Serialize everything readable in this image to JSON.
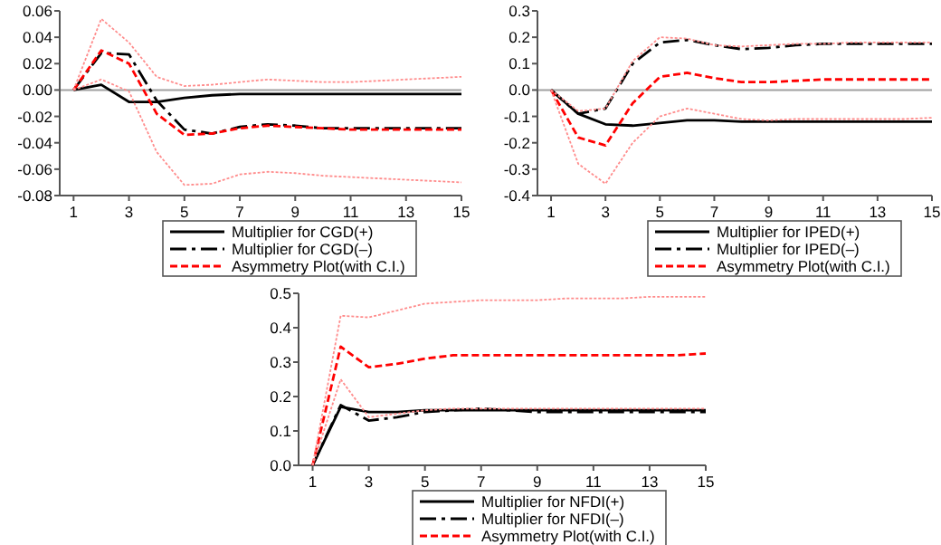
{
  "chart_data": [
    {
      "type": "line",
      "x": [
        1,
        2,
        3,
        4,
        5,
        6,
        7,
        8,
        9,
        10,
        11,
        12,
        13,
        14,
        15
      ],
      "xlim": [
        0.5,
        15
      ],
      "xticks": [
        1,
        3,
        5,
        7,
        9,
        11,
        13,
        15
      ],
      "ylim": [
        -0.08,
        0.06
      ],
      "yticks": [
        {
          "value": 0.06,
          "label": "0.06"
        },
        {
          "value": 0.04,
          "label": "0.04"
        },
        {
          "value": 0.02,
          "label": "0.02"
        },
        {
          "value": 0,
          "label": "0.00"
        },
        {
          "value": -0.02,
          "label": "-0.02"
        },
        {
          "value": -0.04,
          "label": "-0.04"
        },
        {
          "value": -0.06,
          "label": "-0.06"
        },
        {
          "value": -0.08,
          "label": "-0.08"
        }
      ],
      "grid": false,
      "legend": "bottom",
      "ref_lines": [
        {
          "axis": "y",
          "value": 0,
          "color": "#a0a0a0"
        }
      ],
      "series": [
        {
          "name": "Multiplier for CGD(+)",
          "color": "#000000",
          "line_style": "solid",
          "values": [
            0,
            0.004,
            -0.009,
            -0.009,
            -0.006,
            -0.004,
            -0.003,
            -0.003,
            -0.003,
            -0.003,
            -0.003,
            -0.003,
            -0.003,
            -0.003,
            -0.003
          ]
        },
        {
          "name": "Multiplier for CGD(–)",
          "color": "#000000",
          "line_style": "dashed",
          "values": [
            0,
            0.028,
            0.027,
            -0.008,
            -0.03,
            -0.033,
            -0.028,
            -0.026,
            -0.027,
            -0.029,
            -0.029,
            -0.029,
            -0.029,
            -0.029,
            -0.029
          ]
        },
        {
          "name": "Asymmetry Plot(with C.I.)",
          "color": "#ff0000",
          "line_style": "dotted",
          "values": [
            0,
            0.03,
            0.02,
            -0.018,
            -0.034,
            -0.033,
            -0.029,
            -0.027,
            -0.028,
            -0.029,
            -0.03,
            -0.03,
            -0.03,
            -0.03,
            -0.03
          ]
        },
        {
          "color": "#ff8c8c",
          "line_style": "dotted",
          "values": [
            0,
            0.054,
            0.036,
            0.01,
            0.003,
            0.004,
            0.006,
            0.008,
            0.007,
            0.006,
            0.006,
            0.007,
            0.008,
            0.009,
            0.01
          ]
        },
        {
          "color": "#ff8c8c",
          "line_style": "dotted",
          "values": [
            0,
            0.008,
            -0.001,
            -0.047,
            -0.072,
            -0.071,
            -0.064,
            -0.062,
            -0.063,
            -0.065,
            -0.066,
            -0.067,
            -0.068,
            -0.069,
            -0.07
          ]
        }
      ]
    },
    {
      "type": "line",
      "x": [
        1,
        2,
        3,
        4,
        5,
        6,
        7,
        8,
        9,
        10,
        11,
        12,
        13,
        14,
        15
      ],
      "xlim": [
        0.5,
        15
      ],
      "xticks": [
        1,
        3,
        5,
        7,
        9,
        11,
        13,
        15
      ],
      "ylim": [
        -0.4,
        0.3
      ],
      "yticks": [
        {
          "value": 0.3,
          "label": "0.3"
        },
        {
          "value": 0.2,
          "label": "0.2"
        },
        {
          "value": 0.1,
          "label": "0.1"
        },
        {
          "value": 0,
          "label": "0.0"
        },
        {
          "value": -0.1,
          "label": "-0.1"
        },
        {
          "value": -0.2,
          "label": "-0.2"
        },
        {
          "value": -0.3,
          "label": "-0.3"
        },
        {
          "value": -0.4,
          "label": "-0.4"
        }
      ],
      "grid": false,
      "legend": "bottom",
      "ref_lines": [
        {
          "axis": "y",
          "value": 0,
          "color": "#a0a0a0"
        }
      ],
      "series": [
        {
          "name": "Multiplier for IPED(+)",
          "color": "#000000",
          "line_style": "solid",
          "values": [
            0,
            -0.09,
            -0.13,
            -0.135,
            -0.125,
            -0.115,
            -0.115,
            -0.12,
            -0.12,
            -0.12,
            -0.12,
            -0.12,
            -0.12,
            -0.12,
            -0.12
          ]
        },
        {
          "name": "Multiplier for IPED(–)",
          "color": "#000000",
          "line_style": "dashed",
          "values": [
            0,
            -0.09,
            -0.07,
            0.1,
            0.18,
            0.19,
            0.17,
            0.155,
            0.16,
            0.17,
            0.175,
            0.175,
            0.175,
            0.175,
            0.175
          ]
        },
        {
          "name": "Asymmetry Plot(with C.I.)",
          "color": "#ff0000",
          "line_style": "dotted",
          "values": [
            0,
            -0.18,
            -0.21,
            -0.05,
            0.05,
            0.065,
            0.045,
            0.03,
            0.03,
            0.035,
            0.04,
            0.04,
            0.04,
            0.04,
            0.04
          ]
        },
        {
          "color": "#ff8c8c",
          "line_style": "dotted",
          "values": [
            0,
            -0.08,
            -0.07,
            0.11,
            0.2,
            0.195,
            0.17,
            0.165,
            0.17,
            0.175,
            0.175,
            0.18,
            0.18,
            0.18,
            0.18
          ]
        },
        {
          "color": "#ff8c8c",
          "line_style": "dotted",
          "values": [
            0,
            -0.28,
            -0.355,
            -0.2,
            -0.1,
            -0.07,
            -0.09,
            -0.11,
            -0.115,
            -0.11,
            -0.11,
            -0.11,
            -0.11,
            -0.11,
            -0.105
          ]
        }
      ]
    },
    {
      "type": "line",
      "x": [
        1,
        2,
        3,
        4,
        5,
        6,
        7,
        8,
        9,
        10,
        11,
        12,
        13,
        14,
        15
      ],
      "xlim": [
        0.5,
        15
      ],
      "xticks": [
        1,
        3,
        5,
        7,
        9,
        11,
        13,
        15
      ],
      "ylim": [
        0,
        0.5
      ],
      "yticks": [
        {
          "value": 0.5,
          "label": "0.5"
        },
        {
          "value": 0.4,
          "label": "0.4"
        },
        {
          "value": 0.3,
          "label": "0.3"
        },
        {
          "value": 0.2,
          "label": "0.2"
        },
        {
          "value": 0.1,
          "label": "0.1"
        },
        {
          "value": 0,
          "label": "0.0"
        }
      ],
      "grid": false,
      "legend": "bottom",
      "series": [
        {
          "name": "Multiplier for NFDI(+)",
          "color": "#000000",
          "line_style": "solid",
          "values": [
            0,
            0.17,
            0.155,
            0.155,
            0.16,
            0.16,
            0.16,
            0.16,
            0.16,
            0.16,
            0.16,
            0.16,
            0.16,
            0.16,
            0.16
          ]
        },
        {
          "name": "Multiplier for NFDI(–)",
          "color": "#000000",
          "line_style": "dashed",
          "values": [
            0,
            0.175,
            0.13,
            0.14,
            0.155,
            0.16,
            0.165,
            0.16,
            0.155,
            0.155,
            0.155,
            0.155,
            0.155,
            0.155,
            0.155
          ]
        },
        {
          "name": "Asymmetry Plot(with C.I.)",
          "color": "#ff0000",
          "line_style": "dotted",
          "values": [
            0,
            0.345,
            0.285,
            0.295,
            0.31,
            0.32,
            0.32,
            0.32,
            0.32,
            0.32,
            0.32,
            0.32,
            0.32,
            0.32,
            0.325
          ]
        },
        {
          "color": "#ff8c8c",
          "line_style": "dotted",
          "values": [
            0,
            0.435,
            0.43,
            0.45,
            0.47,
            0.475,
            0.48,
            0.48,
            0.48,
            0.485,
            0.485,
            0.485,
            0.49,
            0.49,
            0.49
          ]
        },
        {
          "color": "#ff8c8c",
          "line_style": "dotted",
          "values": [
            0,
            0.25,
            0.14,
            0.15,
            0.16,
            0.165,
            0.165,
            0.165,
            0.165,
            0.165,
            0.165,
            0.165,
            0.165,
            0.165,
            0.165
          ]
        }
      ]
    }
  ]
}
